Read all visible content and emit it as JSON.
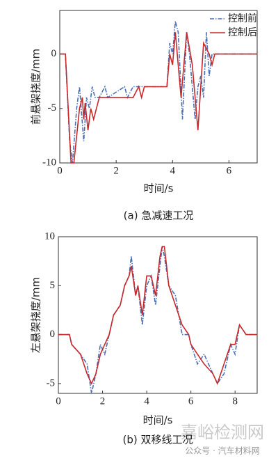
{
  "chart_data": [
    {
      "type": "line",
      "xlabel": "时间/s",
      "ylabel": "前悬架挠度/mm",
      "caption": "(a) 急减速工况",
      "xlim": [
        0,
        7
      ],
      "ylim": [
        -10,
        4
      ],
      "xticks": [
        0,
        2,
        4,
        6
      ],
      "yticks": [
        -10,
        -5,
        0
      ],
      "grid": false,
      "legend": "upper right",
      "series": [
        {
          "name": "控制前",
          "color": "#4a6fb5",
          "dash": "dashdot",
          "x": [
            0,
            0.2,
            0.35,
            0.45,
            0.6,
            0.7,
            0.85,
            0.95,
            1.05,
            1.15,
            1.25,
            1.4,
            1.6,
            1.7,
            2.3,
            2.4,
            2.6,
            3.8,
            3.9,
            4.0,
            4.1,
            4.2,
            4.35,
            4.5,
            4.6,
            4.8,
            4.9,
            5.0,
            5.1,
            5.2,
            5.3,
            5.4,
            7
          ],
          "values": [
            0,
            0,
            -8,
            -10,
            -5,
            -3,
            -8,
            -4,
            -5,
            -3,
            -4,
            -4,
            -3,
            -4,
            -3,
            -4,
            -3,
            -3,
            1,
            0,
            3,
            2,
            -6,
            2,
            0,
            -6,
            -3,
            -2,
            -4,
            2,
            -2,
            0,
            0
          ]
        },
        {
          "name": "控制后",
          "color": "#c8282a",
          "dash": "solid",
          "x": [
            0,
            0.2,
            0.4,
            0.5,
            0.7,
            0.8,
            0.85,
            0.9,
            1.0,
            1.1,
            1.2,
            1.4,
            2.6,
            2.7,
            2.8,
            2.9,
            3.0,
            3.8,
            3.9,
            4.0,
            4.1,
            4.3,
            4.5,
            4.7,
            4.9,
            5.1,
            5.3,
            5.4,
            5.5,
            7
          ],
          "values": [
            0,
            0,
            -10,
            -10,
            -5,
            -4,
            -6,
            -4.5,
            -7,
            -5,
            -6,
            -4,
            -4,
            -3.5,
            -3,
            -4,
            -3,
            -3,
            0,
            -1,
            2,
            -4,
            2,
            -1,
            -7,
            1,
            0,
            -1,
            0,
            0
          ]
        }
      ]
    },
    {
      "type": "line",
      "xlabel": "时间/s",
      "ylabel": "左悬架挠度/mm",
      "caption": "(b) 双移线工况",
      "xlim": [
        0,
        9
      ],
      "ylim": [
        -6,
        10
      ],
      "xticks": [
        0,
        2,
        4,
        6,
        8
      ],
      "yticks": [
        -5,
        0,
        5,
        10
      ],
      "grid": false,
      "series": [
        {
          "color": "#4a6fb5",
          "dash": "dashdot",
          "x": [
            0,
            0.5,
            0.6,
            1.0,
            1.3,
            1.5,
            1.7,
            1.9,
            2.1,
            2.3,
            2.5,
            2.8,
            3.0,
            3.2,
            3.3,
            3.5,
            3.6,
            3.8,
            4.0,
            4.2,
            4.4,
            4.6,
            4.7,
            4.8,
            5.0,
            5.3,
            5.6,
            5.9,
            6.0,
            6.3,
            6.6,
            7.0,
            7.2,
            7.5,
            7.8,
            8.0,
            8.2,
            8.5,
            9
          ],
          "values": [
            0,
            0,
            -1,
            -2,
            -3,
            -6,
            -4,
            -1,
            -2,
            0,
            2,
            3,
            5,
            6,
            8,
            4,
            5,
            1,
            5,
            6,
            3,
            7,
            9,
            8,
            5,
            4,
            0,
            0,
            -1,
            -3,
            -2,
            -4,
            -5,
            -4,
            -1,
            -2,
            1,
            0,
            0
          ]
        },
        {
          "color": "#c8282a",
          "dash": "solid",
          "x": [
            0,
            0.5,
            0.6,
            1.0,
            1.3,
            1.5,
            1.7,
            1.9,
            2.1,
            2.3,
            2.5,
            2.8,
            3.0,
            3.2,
            3.3,
            3.5,
            3.6,
            3.8,
            4.0,
            4.2,
            4.4,
            4.6,
            4.7,
            4.8,
            5.0,
            5.3,
            5.6,
            5.9,
            6.0,
            6.3,
            6.6,
            7.0,
            7.2,
            7.5,
            7.8,
            8.0,
            8.2,
            8.5,
            9
          ],
          "values": [
            0,
            0,
            -1,
            -2,
            -4,
            -5,
            -4,
            -2,
            -1,
            0,
            2,
            3,
            5,
            6,
            7,
            4,
            5,
            2,
            6,
            6,
            4,
            8,
            9,
            9,
            5,
            3,
            1,
            0,
            -1,
            -2,
            -3,
            -4,
            -5,
            -3,
            -1,
            -1,
            1,
            0,
            0
          ]
        }
      ]
    }
  ],
  "watermark": {
    "site": "嘉峪检测网",
    "source": "公众号 · 汽车材料网"
  }
}
